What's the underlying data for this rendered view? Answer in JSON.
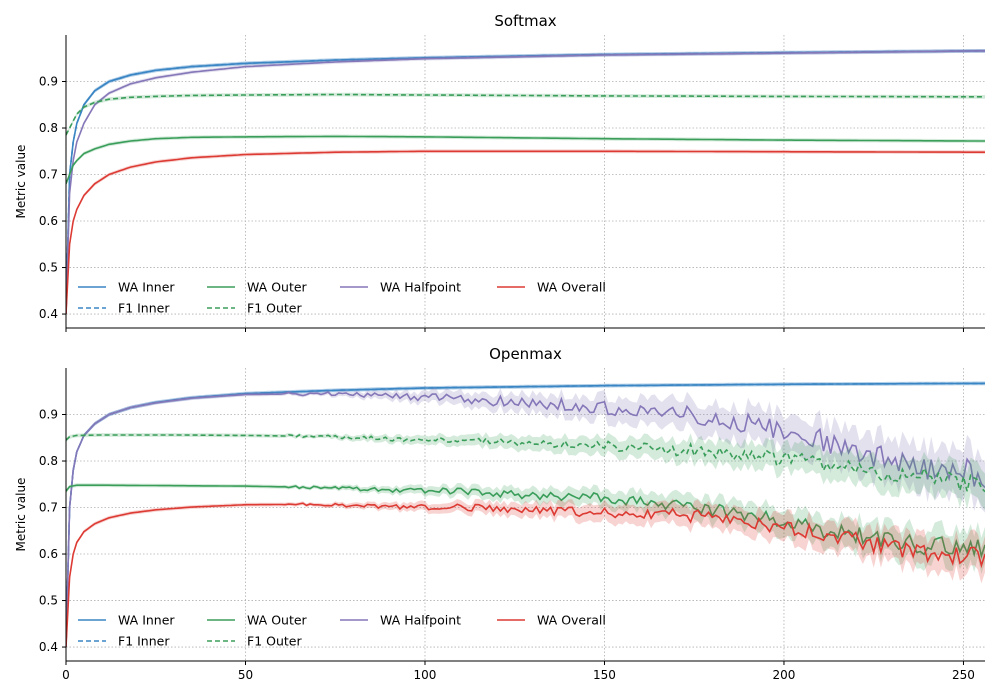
{
  "chart_data": [
    {
      "type": "line",
      "title": "Softmax",
      "xlabel": "",
      "ylabel": "Metric value",
      "xlim": [
        0,
        256
      ],
      "ylim": [
        0.37,
        1.0
      ],
      "xticks": [
        0,
        50,
        100,
        150,
        200,
        250
      ],
      "yticks": [
        0.4,
        0.5,
        0.6,
        0.7,
        0.8,
        0.9
      ],
      "xtick_labels_visible": false,
      "grid": true,
      "legend_position": "lower-left",
      "series": [
        {
          "name": "WA Inner",
          "style": "solid",
          "color": "#3a86c4",
          "band": true,
          "x": [
            0,
            1,
            2,
            3,
            5,
            8,
            12,
            18,
            25,
            35,
            50,
            75,
            100,
            150,
            200,
            256
          ],
          "y": [
            0.4,
            0.7,
            0.77,
            0.81,
            0.85,
            0.88,
            0.9,
            0.914,
            0.924,
            0.932,
            0.939,
            0.946,
            0.951,
            0.958,
            0.962,
            0.966
          ]
        },
        {
          "name": "F1 Inner",
          "style": "dashed",
          "color": "#3a86c4",
          "band": true,
          "x": [
            0,
            1,
            2,
            3,
            5,
            8,
            12,
            18,
            25,
            35,
            50,
            75,
            100,
            150,
            200,
            256
          ],
          "y": [
            0.4,
            0.7,
            0.77,
            0.81,
            0.85,
            0.88,
            0.9,
            0.914,
            0.924,
            0.932,
            0.939,
            0.946,
            0.951,
            0.958,
            0.962,
            0.966
          ]
        },
        {
          "name": "WA Outer",
          "style": "solid",
          "color": "#3a9e5a",
          "band": true,
          "x": [
            0,
            1,
            2,
            3,
            5,
            8,
            12,
            18,
            25,
            35,
            50,
            75,
            100,
            150,
            200,
            256
          ],
          "y": [
            0.68,
            0.7,
            0.72,
            0.73,
            0.745,
            0.755,
            0.765,
            0.772,
            0.777,
            0.78,
            0.781,
            0.782,
            0.781,
            0.777,
            0.774,
            0.772
          ]
        },
        {
          "name": "F1 Outer",
          "style": "dashed",
          "color": "#3a9e5a",
          "band": true,
          "x": [
            0,
            1,
            2,
            3,
            5,
            8,
            12,
            18,
            25,
            35,
            50,
            75,
            100,
            150,
            200,
            256
          ],
          "y": [
            0.785,
            0.8,
            0.815,
            0.83,
            0.845,
            0.855,
            0.862,
            0.866,
            0.868,
            0.87,
            0.871,
            0.872,
            0.871,
            0.869,
            0.868,
            0.867
          ]
        },
        {
          "name": "WA Halfpoint",
          "style": "solid",
          "color": "#8577b8",
          "band": true,
          "x": [
            0,
            1,
            2,
            3,
            5,
            8,
            12,
            18,
            25,
            35,
            50,
            75,
            100,
            150,
            200,
            256
          ],
          "y": [
            0.4,
            0.66,
            0.73,
            0.77,
            0.81,
            0.85,
            0.875,
            0.895,
            0.908,
            0.92,
            0.932,
            0.942,
            0.949,
            0.957,
            0.961,
            0.966
          ]
        },
        {
          "name": "WA Overall",
          "style": "solid",
          "color": "#dc3a33",
          "band": true,
          "x": [
            0,
            1,
            2,
            3,
            5,
            8,
            12,
            18,
            25,
            35,
            50,
            75,
            100,
            150,
            200,
            256
          ],
          "y": [
            0.4,
            0.55,
            0.6,
            0.625,
            0.655,
            0.68,
            0.7,
            0.716,
            0.727,
            0.736,
            0.743,
            0.748,
            0.75,
            0.75,
            0.749,
            0.748
          ]
        }
      ]
    },
    {
      "type": "line",
      "title": "Openmax",
      "xlabel": "",
      "ylabel": "Metric value",
      "xlim": [
        0,
        256
      ],
      "ylim": [
        0.37,
        1.0
      ],
      "xticks": [
        0,
        50,
        100,
        150,
        200,
        250
      ],
      "yticks": [
        0.4,
        0.5,
        0.6,
        0.7,
        0.8,
        0.9
      ],
      "xtick_labels_visible": true,
      "grid": true,
      "legend_position": "lower-left",
      "series": [
        {
          "name": "WA Inner",
          "style": "solid",
          "color": "#3a86c4",
          "band": true,
          "x": [
            0,
            1,
            2,
            3,
            5,
            8,
            12,
            18,
            25,
            35,
            50,
            75,
            100,
            150,
            200,
            256
          ],
          "y": [
            0.4,
            0.7,
            0.78,
            0.82,
            0.855,
            0.88,
            0.9,
            0.915,
            0.926,
            0.936,
            0.945,
            0.952,
            0.957,
            0.962,
            0.965,
            0.967
          ]
        },
        {
          "name": "F1 Inner",
          "style": "dashed",
          "color": "#3a86c4",
          "band": true,
          "x": [
            0,
            1,
            2,
            3,
            5,
            8,
            12,
            18,
            25,
            35,
            50,
            75,
            100,
            150,
            200,
            256
          ],
          "y": [
            0.4,
            0.7,
            0.78,
            0.82,
            0.855,
            0.88,
            0.9,
            0.915,
            0.926,
            0.936,
            0.945,
            0.952,
            0.957,
            0.962,
            0.965,
            0.967
          ]
        },
        {
          "name": "WA Outer",
          "style": "solid",
          "color": "#3a9e5a",
          "band": true,
          "x": [
            0,
            1,
            3,
            10,
            30,
            50,
            70,
            90,
            110,
            130,
            150,
            170,
            190,
            210,
            230,
            256
          ],
          "y": [
            0.735,
            0.745,
            0.748,
            0.748,
            0.747,
            0.746,
            0.743,
            0.738,
            0.735,
            0.725,
            0.72,
            0.705,
            0.685,
            0.655,
            0.625,
            0.61
          ]
        },
        {
          "name": "F1 Outer",
          "style": "dashed",
          "color": "#3a9e5a",
          "band": true,
          "x": [
            0,
            1,
            3,
            10,
            30,
            50,
            70,
            90,
            110,
            130,
            150,
            170,
            190,
            210,
            230,
            256
          ],
          "y": [
            0.845,
            0.852,
            0.855,
            0.856,
            0.856,
            0.855,
            0.853,
            0.848,
            0.845,
            0.838,
            0.832,
            0.825,
            0.812,
            0.795,
            0.775,
            0.75
          ]
        },
        {
          "name": "WA Halfpoint",
          "style": "solid",
          "color": "#8577b8",
          "band": true,
          "x": [
            0,
            1,
            2,
            3,
            5,
            8,
            12,
            18,
            25,
            35,
            50,
            75,
            100,
            130,
            150,
            170,
            190,
            210,
            230,
            256
          ],
          "y": [
            0.4,
            0.7,
            0.78,
            0.82,
            0.855,
            0.88,
            0.9,
            0.915,
            0.925,
            0.935,
            0.943,
            0.945,
            0.937,
            0.925,
            0.915,
            0.905,
            0.88,
            0.845,
            0.8,
            0.77
          ]
        },
        {
          "name": "WA Overall",
          "style": "solid",
          "color": "#dc3a33",
          "band": true,
          "x": [
            0,
            1,
            2,
            3,
            5,
            8,
            12,
            18,
            25,
            35,
            50,
            70,
            90,
            110,
            130,
            150,
            170,
            190,
            210,
            230,
            256
          ],
          "y": [
            0.4,
            0.55,
            0.6,
            0.625,
            0.648,
            0.665,
            0.678,
            0.688,
            0.695,
            0.701,
            0.706,
            0.707,
            0.702,
            0.7,
            0.695,
            0.69,
            0.685,
            0.67,
            0.645,
            0.615,
            0.59
          ]
        }
      ]
    }
  ]
}
